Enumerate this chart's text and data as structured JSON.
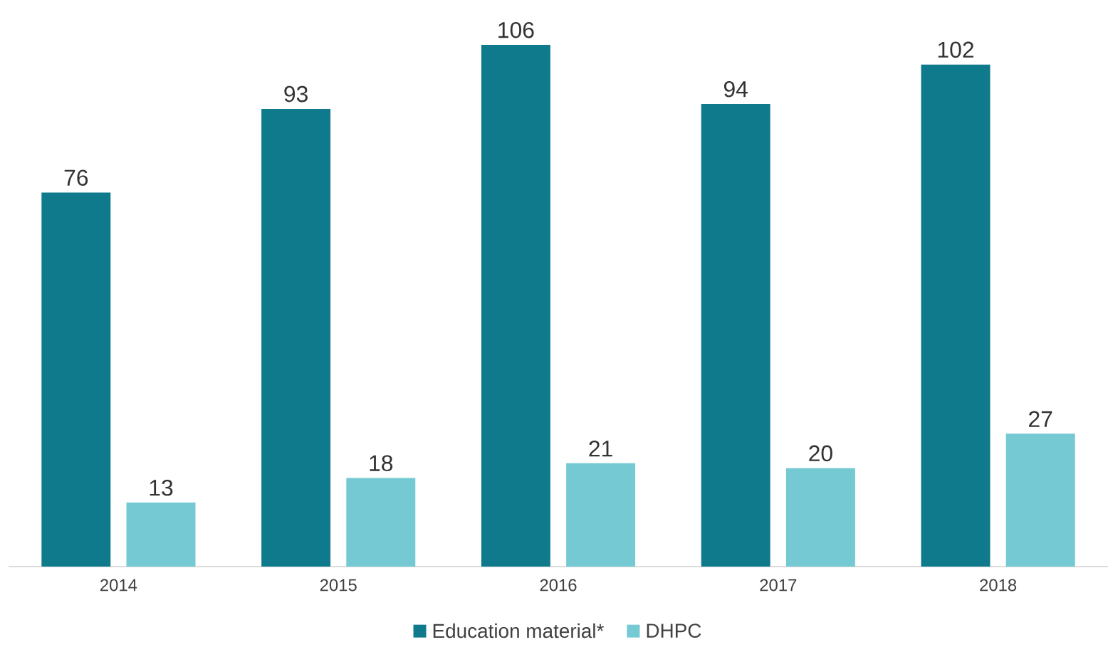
{
  "chart_data": {
    "type": "bar",
    "categories": [
      "2014",
      "2015",
      "2016",
      "2017",
      "2018"
    ],
    "series": [
      {
        "name": "Education material*",
        "color": "#0f7a8c",
        "values": [
          76,
          93,
          106,
          94,
          102
        ]
      },
      {
        "name": "DHPC",
        "color": "#74c9d3",
        "values": [
          13,
          18,
          21,
          20,
          27
        ]
      }
    ],
    "data_labels": true,
    "legend": "bottom"
  }
}
